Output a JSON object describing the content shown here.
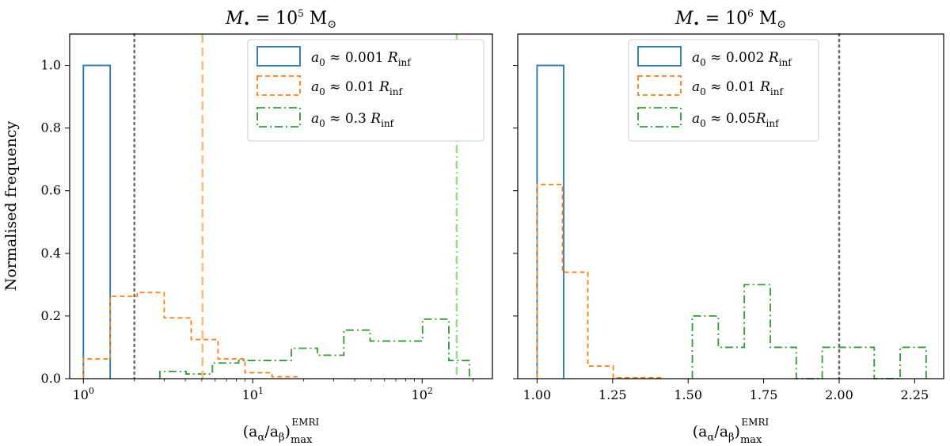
{
  "colors": {
    "blue": "#1f77b4",
    "orange": "#ff7f0e",
    "green": "#2ca02c",
    "orange_light": "#ffbb78",
    "green_light": "#98df8a",
    "grey": "#6e6e6e"
  },
  "ylabel": "Normalised frequency",
  "chart_data": [
    {
      "type": "histogram",
      "title": "M• = 10^5 M⊙",
      "title_parts": [
        "M",
        "•",
        " = 10",
        "5",
        " M",
        "⊙"
      ],
      "xlabel": "(aα/aβ)max EMRI",
      "xlabel_parts": [
        "(a",
        "α",
        "/a",
        "β",
        ")",
        "max",
        "EMRI"
      ],
      "xscale": "log",
      "xlim": [
        0.83,
        260
      ],
      "ylim": [
        0,
        1.1
      ],
      "xticks": [
        {
          "value": 1,
          "base": "10",
          "exp": "0"
        },
        {
          "value": 10,
          "base": "10",
          "exp": "1"
        },
        {
          "value": 100,
          "base": "10",
          "exp": "2"
        }
      ],
      "yticks": [
        "0.0",
        "0.2",
        "0.4",
        "0.6",
        "0.8",
        "1.0"
      ],
      "series": [
        {
          "name": "a0 ≈ 0.001 Rinf",
          "legend_parts": [
            "a",
            "0",
            " ≈ 0.001 ",
            "R",
            "inf"
          ],
          "style": "solid",
          "color_key": "blue",
          "edges": [
            1.0,
            1.44
          ],
          "values": [
            1.0
          ]
        },
        {
          "name": "a0 ≈ 0.01 Rinf",
          "legend_parts": [
            "a",
            "0",
            " ≈ 0.01 ",
            "R",
            "inf"
          ],
          "style": "dashed",
          "color_key": "orange",
          "edges": [
            1.0,
            1.44,
            2.08,
            3.0,
            4.33,
            6.24,
            9.0,
            13.0,
            18.7
          ],
          "values": [
            0.063,
            0.263,
            0.275,
            0.194,
            0.125,
            0.063,
            0.019,
            0.006
          ]
        },
        {
          "name": "a0 ≈ 0.3 Rinf",
          "legend_parts": [
            "a",
            "0",
            " ≈ 0.3 ",
            "R",
            "inf"
          ],
          "style": "dashdot",
          "color_key": "green",
          "edges": [
            2.83,
            4.04,
            5.78,
            8.26,
            11.8,
            16.9,
            24.1,
            34.5,
            49.3,
            70.4,
            100.6,
            143.8,
            190.0
          ],
          "values": [
            0.023,
            0.015,
            0.05,
            0.058,
            0.058,
            0.097,
            0.075,
            0.155,
            0.12,
            0.12,
            0.19,
            0.058
          ]
        }
      ],
      "vlines": [
        {
          "x": 2.0,
          "style": "dotted",
          "color_key": "grey"
        },
        {
          "x": 5.05,
          "style": "dashed",
          "color_key": "orange_light"
        },
        {
          "x": 160.0,
          "style": "dashdot",
          "color_key": "green_light"
        }
      ]
    },
    {
      "type": "histogram",
      "title": "M• = 10^6 M⊙",
      "title_parts": [
        "M",
        "•",
        " = 10",
        "6",
        " M",
        "⊙"
      ],
      "xlabel": "(aα/aβ)max EMRI",
      "xlabel_parts": [
        "(a",
        "α",
        "/a",
        "β",
        ")",
        "max",
        "EMRI"
      ],
      "xscale": "linear",
      "xlim": [
        0.936,
        2.346
      ],
      "ylim": [
        0,
        1.1
      ],
      "xticks": [
        {
          "value": 1.0,
          "label": "1.00"
        },
        {
          "value": 1.25,
          "label": "1.25"
        },
        {
          "value": 1.5,
          "label": "1.50"
        },
        {
          "value": 1.75,
          "label": "1.75"
        },
        {
          "value": 2.0,
          "label": "2.00"
        },
        {
          "value": 2.25,
          "label": "2.25"
        }
      ],
      "yticks": [],
      "series": [
        {
          "name": "a0 ≈ 0.002 Rinf",
          "legend_parts": [
            "a",
            "0",
            " ≈ 0.002 ",
            "R",
            "inf"
          ],
          "style": "solid",
          "color_key": "blue",
          "edges": [
            1.0,
            1.088
          ],
          "values": [
            1.0
          ]
        },
        {
          "name": "a0 ≈ 0.01 Rinf",
          "legend_parts": [
            "a",
            "0",
            " ≈ 0.01 ",
            "R",
            "inf"
          ],
          "style": "dashed",
          "color_key": "orange",
          "edges": [
            1.0,
            1.084,
            1.168,
            1.252,
            1.336,
            1.42
          ],
          "values": [
            0.62,
            0.34,
            0.04,
            0.003,
            0.003
          ]
        },
        {
          "name": "a0 ≈ 0.05Rinf",
          "legend_parts": [
            "a",
            "0",
            " ≈ 0.05",
            "R",
            "inf"
          ],
          "style": "dashdot",
          "color_key": "green",
          "edges": [
            1.514,
            1.6,
            1.686,
            1.772,
            1.858,
            1.944,
            2.03,
            2.116,
            2.202,
            2.288
          ],
          "values": [
            0.2,
            0.1,
            0.3,
            0.1,
            0.0,
            0.1,
            0.1,
            0.0,
            0.1
          ]
        }
      ],
      "vlines": [
        {
          "x": 2.0,
          "style": "dotted",
          "color_key": "grey"
        }
      ]
    }
  ]
}
